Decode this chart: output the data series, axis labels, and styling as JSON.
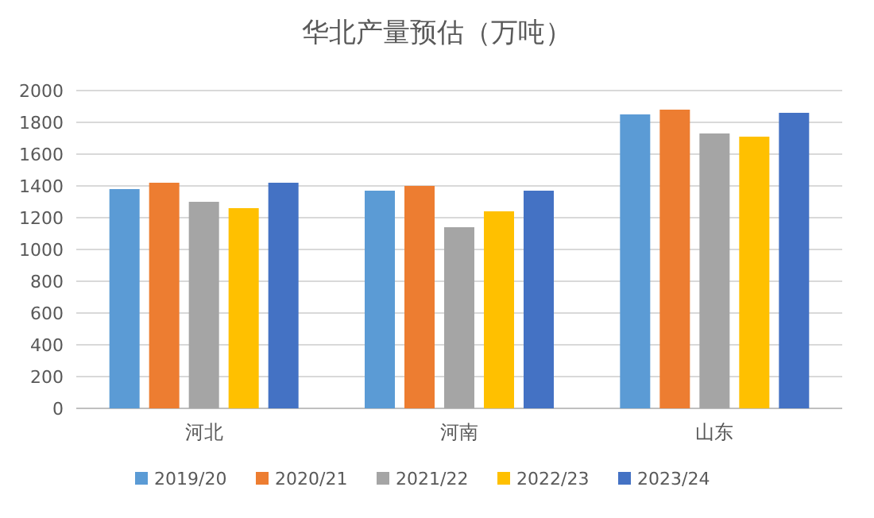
{
  "chart_data": {
    "type": "bar",
    "title": "华北产量预估（万吨）",
    "categories": [
      "河北",
      "河南",
      "山东"
    ],
    "series": [
      {
        "name": "2019/20",
        "color": "#5b9bd5",
        "values": [
          1380,
          1370,
          1850
        ]
      },
      {
        "name": "2020/21",
        "color": "#ed7d31",
        "values": [
          1420,
          1400,
          1880
        ]
      },
      {
        "name": "2021/22",
        "color": "#a5a5a5",
        "values": [
          1300,
          1140,
          1730
        ]
      },
      {
        "name": "2022/23",
        "color": "#ffc000",
        "values": [
          1260,
          1240,
          1710
        ]
      },
      {
        "name": "2023/24",
        "color": "#4472c4",
        "values": [
          1420,
          1370,
          1860
        ]
      }
    ],
    "ylim": [
      0,
      2000
    ],
    "yticks": [
      0,
      200,
      400,
      600,
      800,
      1000,
      1200,
      1400,
      1600,
      1800,
      2000
    ],
    "grid": "y",
    "legend": "bottom"
  }
}
